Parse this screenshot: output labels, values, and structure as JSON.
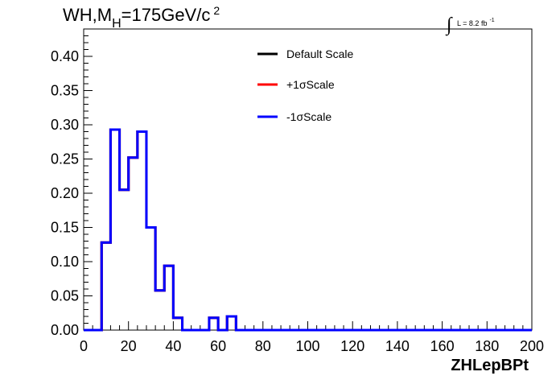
{
  "chart_data": {
    "type": "histogram",
    "title_main": "WH,M",
    "title_sub": "H",
    "title_rest": "=175GeV/c",
    "title_sup": "2",
    "lumi_text": "L = 8.2 fb",
    "lumi_sup": "-1",
    "lumi_integral": "∫",
    "xlabel": "ZHLepBPt",
    "xlim": [
      0,
      200
    ],
    "ylim": [
      0,
      0.44
    ],
    "x_ticks": [
      "0",
      "20",
      "40",
      "60",
      "80",
      "100",
      "120",
      "140",
      "160",
      "180",
      "200"
    ],
    "y_ticks": [
      "0.00",
      "0.05",
      "0.10",
      "0.15",
      "0.20",
      "0.25",
      "0.30",
      "0.35",
      "0.40"
    ],
    "bin_edges": [
      0,
      4,
      8,
      12,
      16,
      20,
      24,
      28,
      32,
      36,
      40,
      44,
      48,
      52,
      56,
      60,
      64,
      68,
      72,
      76,
      80,
      84,
      88,
      92,
      96,
      100,
      104,
      108,
      112,
      116,
      120,
      124,
      128,
      132,
      136,
      140,
      144,
      148,
      152,
      156,
      160,
      164,
      168,
      172,
      176,
      180,
      184,
      188,
      192,
      196,
      200
    ],
    "series": [
      {
        "name": "Default Scale",
        "color": "#000000",
        "values": [
          0,
          0,
          0.128,
          0.293,
          0.205,
          0.252,
          0.29,
          0.15,
          0.058,
          0.094,
          0.018,
          0,
          0,
          0,
          0.018,
          0,
          0.02,
          0,
          0,
          0,
          0,
          0,
          0,
          0,
          0,
          0,
          0,
          0,
          0,
          0,
          0,
          0,
          0,
          0,
          0,
          0,
          0,
          0,
          0,
          0,
          0,
          0,
          0,
          0,
          0,
          0,
          0,
          0,
          0,
          0
        ]
      },
      {
        "name": "+1σScale",
        "color": "#ff0000",
        "values": [
          0,
          0,
          0.128,
          0.293,
          0.205,
          0.252,
          0.29,
          0.15,
          0.058,
          0.094,
          0.018,
          0,
          0,
          0,
          0.018,
          0,
          0.02,
          0,
          0,
          0,
          0,
          0,
          0,
          0,
          0,
          0,
          0,
          0,
          0,
          0,
          0,
          0,
          0,
          0,
          0,
          0,
          0,
          0,
          0,
          0,
          0,
          0,
          0,
          0,
          0,
          0,
          0,
          0,
          0,
          0
        ]
      },
      {
        "name": "-1σScale",
        "color": "#0000ff",
        "values": [
          0,
          0,
          0.128,
          0.293,
          0.205,
          0.252,
          0.29,
          0.15,
          0.058,
          0.094,
          0.018,
          0,
          0,
          0,
          0.018,
          0,
          0.02,
          0,
          0,
          0,
          0,
          0,
          0,
          0,
          0,
          0,
          0,
          0,
          0,
          0,
          0,
          0,
          0,
          0,
          0,
          0,
          0,
          0,
          0,
          0,
          0,
          0,
          0,
          0,
          0,
          0,
          0,
          0,
          0,
          0
        ]
      }
    ],
    "legend_position": "top-center",
    "grid": false
  }
}
